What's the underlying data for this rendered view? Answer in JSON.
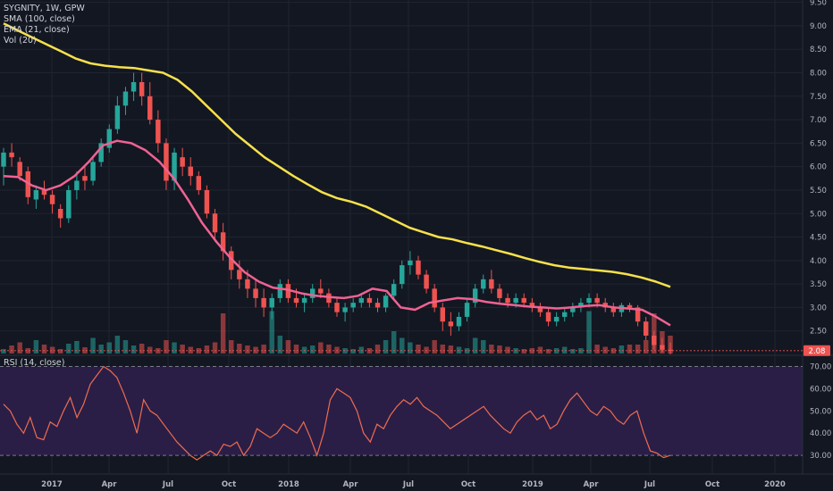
{
  "colors": {
    "background": "#131722",
    "up": "#26a69a",
    "down": "#ef5350",
    "sma": "#f7e14b",
    "ema": "#f06292",
    "rsi_line": "#ef6c4f",
    "rsi_band": "#2a1e47",
    "price_label_bg": "#ef5350"
  },
  "legend": {
    "title": "SYGNITY, 1W, GPW",
    "sma": "SMA (100, close)",
    "ema": "EMA (21, close)",
    "vol": "Vol (20)",
    "rsi": "RSI (14, close)"
  },
  "price_label": "2.08",
  "chart_data": [
    {
      "type": "candlestick",
      "title": "SYGNITY, 1W, GPW",
      "y_ticks": [
        "2.50",
        "3.00",
        "3.50",
        "4.00",
        "4.50",
        "5.00",
        "5.50",
        "6.00",
        "6.50",
        "7.00",
        "7.50",
        "8.00",
        "8.50",
        "9.00",
        "9.50"
      ],
      "y_range": [
        2.0,
        9.55
      ],
      "x_ticks": [
        "2017",
        "Apr",
        "Jul",
        "Oct",
        "2018",
        "Apr",
        "Jul",
        "Oct",
        "2019",
        "Apr",
        "Jul",
        "Oct",
        "2020"
      ],
      "last_price": 2.08,
      "series": [
        {
          "name": "SMA (100, close)",
          "values": [
            9.05,
            8.9,
            8.75,
            8.6,
            8.45,
            8.3,
            8.2,
            8.15,
            8.12,
            8.1,
            8.05,
            8.0,
            7.85,
            7.6,
            7.3,
            7.0,
            6.7,
            6.45,
            6.2,
            6.0,
            5.8,
            5.62,
            5.45,
            5.33,
            5.25,
            5.15,
            5.0,
            4.85,
            4.7,
            4.6,
            4.5,
            4.45,
            4.37,
            4.3,
            4.22,
            4.14,
            4.05,
            3.97,
            3.9,
            3.85,
            3.82,
            3.79,
            3.76,
            3.71,
            3.64,
            3.55,
            3.44
          ]
        },
        {
          "name": "EMA (21, close)",
          "values": [
            5.8,
            5.78,
            5.6,
            5.5,
            5.6,
            5.8,
            6.1,
            6.45,
            6.55,
            6.5,
            6.35,
            6.1,
            5.75,
            5.3,
            4.8,
            4.4,
            4.05,
            3.75,
            3.55,
            3.42,
            3.38,
            3.3,
            3.25,
            3.22,
            3.2,
            3.25,
            3.4,
            3.35,
            3.0,
            2.95,
            3.1,
            3.15,
            3.2,
            3.18,
            3.12,
            3.08,
            3.05,
            3.02,
            3.0,
            2.98,
            3.0,
            3.03,
            3.05,
            3.0,
            2.98,
            2.95,
            2.8,
            2.62
          ]
        }
      ],
      "candles": [
        [
          6.0,
          6.4,
          5.6,
          6.3
        ],
        [
          6.3,
          6.5,
          6.0,
          6.2
        ],
        [
          6.1,
          6.2,
          5.7,
          5.8
        ],
        [
          5.9,
          6.0,
          5.2,
          5.35
        ],
        [
          5.3,
          5.6,
          5.1,
          5.5
        ],
        [
          5.5,
          5.7,
          5.3,
          5.4
        ],
        [
          5.4,
          5.5,
          5.0,
          5.2
        ],
        [
          5.1,
          5.2,
          4.7,
          4.9
        ],
        [
          4.9,
          5.6,
          4.8,
          5.5
        ],
        [
          5.5,
          5.9,
          5.3,
          5.7
        ],
        [
          5.8,
          6.0,
          5.5,
          5.7
        ],
        [
          5.7,
          6.2,
          5.6,
          6.1
        ],
        [
          6.1,
          6.6,
          6.0,
          6.5
        ],
        [
          6.4,
          6.9,
          6.3,
          6.8
        ],
        [
          6.8,
          7.5,
          6.7,
          7.3
        ],
        [
          7.3,
          7.7,
          7.1,
          7.6
        ],
        [
          7.6,
          8.0,
          7.4,
          7.8
        ],
        [
          7.8,
          8.0,
          7.3,
          7.5
        ],
        [
          7.5,
          7.8,
          6.9,
          7.0
        ],
        [
          7.0,
          7.2,
          6.3,
          6.5
        ],
        [
          6.5,
          6.6,
          5.5,
          5.7
        ],
        [
          5.7,
          6.4,
          5.5,
          6.3
        ],
        [
          6.2,
          6.4,
          5.8,
          6.0
        ],
        [
          6.0,
          6.2,
          5.6,
          5.8
        ],
        [
          5.8,
          5.9,
          5.4,
          5.5
        ],
        [
          5.5,
          5.6,
          4.9,
          5.0
        ],
        [
          5.0,
          5.1,
          4.4,
          4.6
        ],
        [
          4.6,
          4.8,
          4.0,
          4.2
        ],
        [
          4.2,
          4.3,
          3.6,
          3.8
        ],
        [
          3.8,
          4.0,
          3.4,
          3.6
        ],
        [
          3.6,
          3.8,
          3.2,
          3.4
        ],
        [
          3.4,
          3.6,
          3.0,
          3.2
        ],
        [
          3.2,
          3.4,
          2.8,
          3.0
        ],
        [
          3.0,
          3.3,
          2.75,
          3.2
        ],
        [
          3.2,
          3.6,
          3.1,
          3.5
        ],
        [
          3.5,
          3.6,
          3.1,
          3.2
        ],
        [
          3.2,
          3.4,
          3.0,
          3.1
        ],
        [
          3.1,
          3.3,
          2.9,
          3.2
        ],
        [
          3.2,
          3.5,
          3.1,
          3.4
        ],
        [
          3.4,
          3.6,
          3.2,
          3.3
        ],
        [
          3.3,
          3.4,
          3.0,
          3.1
        ],
        [
          3.1,
          3.2,
          2.8,
          2.9
        ],
        [
          2.9,
          3.1,
          2.7,
          3.0
        ],
        [
          3.0,
          3.2,
          2.9,
          3.1
        ],
        [
          3.1,
          3.3,
          3.0,
          3.2
        ],
        [
          3.2,
          3.3,
          3.0,
          3.1
        ],
        [
          3.1,
          3.2,
          2.9,
          3.0
        ],
        [
          3.0,
          3.3,
          2.9,
          3.25
        ],
        [
          3.25,
          3.6,
          3.2,
          3.5
        ],
        [
          3.5,
          4.0,
          3.4,
          3.9
        ],
        [
          3.9,
          4.2,
          3.7,
          4.0
        ],
        [
          4.0,
          4.1,
          3.6,
          3.7
        ],
        [
          3.7,
          3.8,
          3.3,
          3.4
        ],
        [
          3.4,
          3.5,
          2.9,
          3.0
        ],
        [
          3.0,
          3.1,
          2.5,
          2.7
        ],
        [
          2.7,
          2.9,
          2.4,
          2.6
        ],
        [
          2.6,
          2.9,
          2.5,
          2.8
        ],
        [
          2.8,
          3.2,
          2.7,
          3.1
        ],
        [
          3.1,
          3.5,
          3.0,
          3.4
        ],
        [
          3.4,
          3.7,
          3.3,
          3.6
        ],
        [
          3.6,
          3.8,
          3.3,
          3.4
        ],
        [
          3.4,
          3.5,
          3.1,
          3.2
        ],
        [
          3.2,
          3.3,
          3.0,
          3.1
        ],
        [
          3.1,
          3.3,
          3.0,
          3.2
        ],
        [
          3.2,
          3.3,
          3.0,
          3.1
        ],
        [
          3.1,
          3.2,
          2.9,
          3.0
        ],
        [
          3.0,
          3.1,
          2.8,
          2.9
        ],
        [
          2.9,
          3.0,
          2.6,
          2.7
        ],
        [
          2.7,
          2.9,
          2.6,
          2.8
        ],
        [
          2.8,
          3.0,
          2.7,
          2.9
        ],
        [
          2.9,
          3.1,
          2.8,
          3.0
        ],
        [
          3.0,
          3.2,
          2.9,
          3.1
        ],
        [
          3.1,
          3.3,
          3.0,
          3.2
        ],
        [
          3.2,
          3.3,
          3.0,
          3.1
        ],
        [
          3.1,
          3.2,
          2.9,
          3.0
        ],
        [
          3.0,
          3.1,
          2.8,
          2.9
        ],
        [
          2.9,
          3.1,
          2.8,
          3.05
        ],
        [
          3.05,
          3.1,
          2.9,
          3.0
        ],
        [
          3.0,
          3.05,
          2.6,
          2.7
        ],
        [
          2.7,
          2.8,
          2.3,
          2.4
        ],
        [
          2.4,
          2.5,
          2.1,
          2.2
        ],
        [
          2.2,
          2.35,
          2.05,
          2.1
        ],
        [
          2.1,
          2.25,
          2.0,
          2.08
        ]
      ],
      "volume_scale": "relative",
      "volumes": [
        0.1,
        0.18,
        0.25,
        0.12,
        0.3,
        0.2,
        0.15,
        0.1,
        0.22,
        0.28,
        0.14,
        0.35,
        0.2,
        0.25,
        0.4,
        0.3,
        0.18,
        0.22,
        0.15,
        0.12,
        0.3,
        0.25,
        0.2,
        0.15,
        0.12,
        0.18,
        0.25,
        0.9,
        0.3,
        0.22,
        0.18,
        0.15,
        0.2,
        0.95,
        0.4,
        0.3,
        0.2,
        0.15,
        0.18,
        0.25,
        0.2,
        0.15,
        0.12,
        0.1,
        0.15,
        0.12,
        0.2,
        0.3,
        0.5,
        0.35,
        0.25,
        0.2,
        0.15,
        0.3,
        0.2,
        0.18,
        0.15,
        0.12,
        0.35,
        0.3,
        0.2,
        0.18,
        0.15,
        0.12,
        0.1,
        0.12,
        0.15,
        0.1,
        0.12,
        0.15,
        0.1,
        0.12,
        0.95,
        0.2,
        0.15,
        0.12,
        0.18,
        0.2,
        0.2,
        0.3,
        0.9,
        0.5,
        0.4
      ]
    },
    {
      "type": "line",
      "title": "RSI (14, close)",
      "y_ticks": [
        "30.00",
        "40.00",
        "50.00",
        "60.00",
        "70.00"
      ],
      "y_range": [
        22,
        75
      ],
      "bands": [
        30,
        70
      ],
      "series": [
        {
          "name": "RSI (14, close)",
          "values": [
            53,
            50,
            44,
            40,
            47,
            38,
            37,
            45,
            43,
            50,
            56,
            47,
            53,
            62,
            66,
            70,
            68,
            65,
            58,
            50,
            40,
            55,
            50,
            48,
            44,
            40,
            36,
            33,
            30,
            28,
            30,
            32,
            30,
            35,
            34,
            36,
            30,
            34,
            42,
            40,
            38,
            40,
            44,
            42,
            40,
            45,
            38,
            30,
            40,
            55,
            60,
            58,
            56,
            50,
            40,
            36,
            44,
            42,
            48,
            52,
            55,
            53,
            56,
            52,
            50,
            48,
            45,
            42,
            44,
            46,
            48,
            50,
            52,
            48,
            45,
            42,
            40,
            45,
            48,
            50,
            46,
            48,
            42,
            44,
            50,
            55,
            58,
            54,
            50,
            48,
            52,
            50,
            46,
            44,
            48,
            50,
            40,
            32,
            31,
            29,
            30
          ]
        }
      ]
    }
  ]
}
